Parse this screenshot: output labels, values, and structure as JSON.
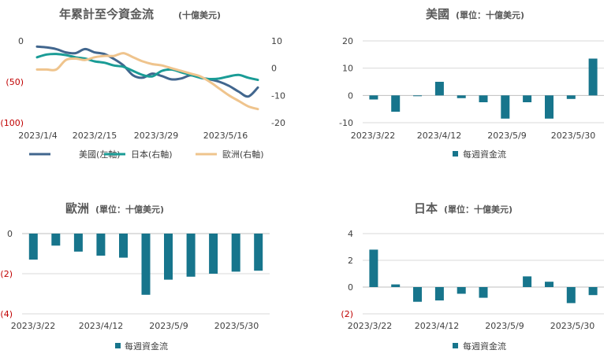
{
  "colors": {
    "us": "#41668e",
    "japan": "#1a9c96",
    "europe": "#efc48d",
    "bar": "#17758c",
    "negative_label": "#c00000"
  },
  "chart_data": [
    {
      "id": "ytd",
      "type": "line",
      "title": "年累計至今資金流",
      "subtitle": "(十億美元)",
      "x_tick_labels": [
        "2023/1/4",
        "2023/2/15",
        "2023/3/29",
        "2023/5/16"
      ],
      "left_axis": {
        "ylim": [
          -100,
          0
        ],
        "ticks": [
          0,
          -50,
          -100
        ],
        "tick_labels": [
          "0",
          "(50)",
          "(100)"
        ]
      },
      "right_axis": {
        "ylim": [
          -20,
          10
        ],
        "ticks": [
          10,
          0,
          -10,
          -20
        ],
        "tick_labels": [
          "10",
          "0",
          "-10",
          "-20"
        ]
      },
      "legend": "bottom",
      "series": [
        {
          "name": "美國(左軸)",
          "axis": "left",
          "color": "#41668e",
          "values": [
            -7,
            -8,
            -10,
            -14,
            -15,
            -10,
            -14,
            -16,
            -22,
            -30,
            -42,
            -45,
            -40,
            -43,
            -47,
            -46,
            -42,
            -45,
            -47,
            -50,
            -55,
            -62,
            -68,
            -57
          ]
        },
        {
          "name": "日本(右軸)",
          "axis": "right",
          "color": "#1a9c96",
          "values": [
            4,
            5,
            5.2,
            4.8,
            4,
            3.5,
            2.5,
            2,
            1,
            0.5,
            -1,
            -2.5,
            -3,
            -1,
            -0.5,
            -1.5,
            -2.5,
            -3.5,
            -4,
            -3.8,
            -3,
            -2.5,
            -3.5,
            -4.3
          ]
        },
        {
          "name": "歐洲(右軸)",
          "axis": "right",
          "color": "#efc48d",
          "values": [
            -0.5,
            -0.5,
            -0.5,
            3,
            3.5,
            3,
            4,
            4.5,
            4.5,
            5.5,
            4,
            2.5,
            1.5,
            1,
            0,
            -1,
            -2,
            -3,
            -5,
            -7.5,
            -10,
            -12,
            -14,
            -15
          ]
        }
      ]
    },
    {
      "id": "us",
      "type": "bar",
      "title": "美國",
      "subtitle": "(單位：十億美元)",
      "ylim": [
        -10,
        20
      ],
      "ticks": [
        20,
        10,
        0,
        -10
      ],
      "tick_labels": [
        "20",
        "10",
        "0",
        "-10"
      ],
      "x_tick_labels": [
        "2023/3/22",
        "2023/4/12",
        "2023/5/9",
        "2023/5/30"
      ],
      "legend_label": "每週資金流",
      "values": [
        -1.5,
        -6,
        -0.3,
        5,
        -1,
        -2.5,
        -8.5,
        -2.5,
        -8.5,
        -1.3,
        13.5
      ]
    },
    {
      "id": "europe",
      "type": "bar",
      "title": "歐洲",
      "subtitle": "(單位：十億美元)",
      "ylim": [
        -4,
        0
      ],
      "ticks": [
        0,
        -2,
        -4
      ],
      "tick_labels": [
        "0",
        "(2)",
        "(4)"
      ],
      "x_tick_labels": [
        "2023/3/22",
        "2023/4/12",
        "2023/5/9",
        "2023/5/30"
      ],
      "legend_label": "每週資金流",
      "values": [
        -1.3,
        -0.6,
        -0.9,
        -1.1,
        -1.2,
        -3.05,
        -2.3,
        -2.15,
        -2.0,
        -1.9,
        -1.85
      ]
    },
    {
      "id": "japan",
      "type": "bar",
      "title": "日本",
      "subtitle": "(單位：十億美元)",
      "ylim": [
        -2,
        4
      ],
      "ticks": [
        4,
        2,
        0,
        -2
      ],
      "tick_labels": [
        "4",
        "2",
        "0",
        "(2)"
      ],
      "x_tick_labels": [
        "2023/3/22",
        "2023/4/12",
        "2023/5/9",
        "2023/5/30"
      ],
      "legend_label": "每週資金流",
      "values": [
        2.8,
        0.2,
        -1.1,
        -1.0,
        -0.5,
        -0.8,
        0,
        0.8,
        0.4,
        -1.2,
        -0.6
      ]
    }
  ]
}
